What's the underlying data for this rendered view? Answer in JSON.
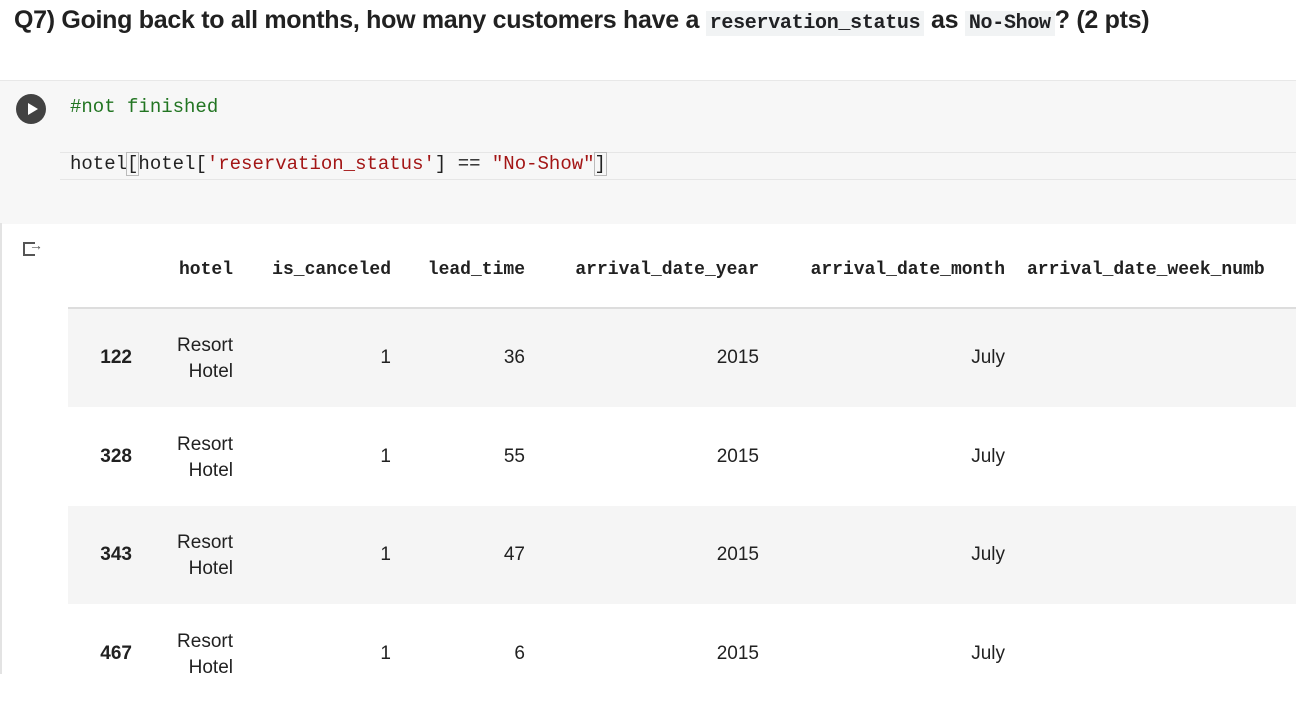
{
  "heading": {
    "parts": [
      "Q7) Going back to all months, how many customers have a ",
      "reservation_status",
      " as ",
      "No-Show",
      "? (2 pts)"
    ]
  },
  "code": {
    "comment": "#not finished",
    "tokens": [
      "hotel",
      "[",
      "hotel",
      "[",
      "'reservation_status'",
      "]",
      " == ",
      "\"No-Show\"",
      "]"
    ]
  },
  "table": {
    "columns": [
      "",
      "hotel",
      "is_canceled",
      "lead_time",
      "arrival_date_year",
      "arrival_date_month",
      "arrival_date_week_numb"
    ],
    "rows": [
      [
        "122",
        "Resort Hotel",
        "1",
        "36",
        "2015",
        "July"
      ],
      [
        "328",
        "Resort Hotel",
        "1",
        "55",
        "2015",
        "July"
      ],
      [
        "343",
        "Resort Hotel",
        "1",
        "47",
        "2015",
        "July"
      ],
      [
        "467",
        "Resort Hotel",
        "1",
        "6",
        "2015",
        "July"
      ]
    ]
  }
}
